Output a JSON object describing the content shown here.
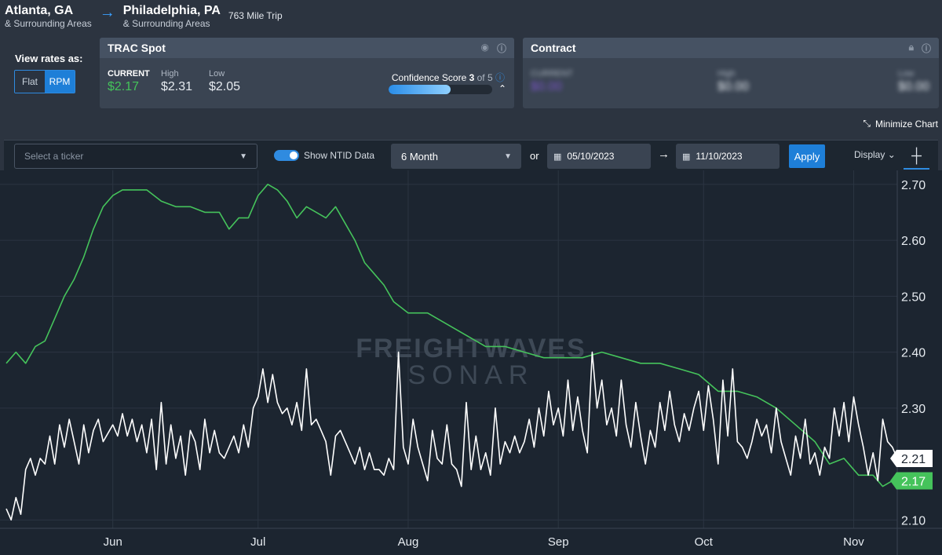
{
  "route": {
    "origin": "Atlanta, GA",
    "origin_sub": "& Surrounding Areas",
    "destination": "Philadelphia, PA",
    "destination_sub": "& Surrounding Areas",
    "trip": "763 Mile Trip"
  },
  "view_rates": {
    "label": "View rates as:",
    "flat": "Flat",
    "rpm": "RPM",
    "selected": "RPM"
  },
  "spot": {
    "title": "TRAC Spot",
    "current_label": "CURRENT",
    "current": "$2.17",
    "high_label": "High",
    "high": "$2.31",
    "low_label": "Low",
    "low": "$2.05",
    "confidence_label": "Confidence Score",
    "confidence_score": "3",
    "confidence_of": "of 5",
    "confidence_fraction": 0.6
  },
  "contract": {
    "title": "Contract",
    "current_label": "CURRENT",
    "current": "$0.00",
    "high_label": "High",
    "high": "$0.00",
    "low_label": "Low",
    "low": "$0.00"
  },
  "minimize_label": "Minimize Chart",
  "toolbar": {
    "ticker_placeholder": "Select a ticker",
    "show_ntid_label": "Show NTID Data",
    "period": "6 Month",
    "or_label": "or",
    "start_date": "05/10/2023",
    "end_date": "11/10/2023",
    "apply_label": "Apply",
    "display_label": "Display"
  },
  "colors": {
    "green": "#45c35b",
    "white": "#ffffff",
    "accent": "#1e7fd8",
    "background": "#1c2530"
  },
  "chart_data": {
    "type": "line",
    "watermark": [
      "FREIGHTWAVES",
      "SONAR"
    ],
    "x_ticks": [
      "Jun",
      "Jul",
      "Aug",
      "Sep",
      "Oct",
      "Nov"
    ],
    "x_tick_dates": [
      "2023-06-01",
      "2023-07-01",
      "2023-08-01",
      "2023-09-01",
      "2023-10-01",
      "2023-11-01"
    ],
    "x_range": [
      "2023-05-10",
      "2023-11-10"
    ],
    "y_ticks": [
      "2.70",
      "2.60",
      "2.50",
      "2.40",
      "2.30",
      "2.10"
    ],
    "y_tick_values": [
      2.7,
      2.6,
      2.5,
      2.4,
      2.3,
      2.1
    ],
    "ylim": [
      2.085,
      2.725
    ],
    "grid": true,
    "series": [
      {
        "color": "#45c35b",
        "end_label": "2.17",
        "points": [
          [
            "2023-05-10",
            2.38
          ],
          [
            "2023-05-12",
            2.4
          ],
          [
            "2023-05-14",
            2.38
          ],
          [
            "2023-05-16",
            2.41
          ],
          [
            "2023-05-18",
            2.42
          ],
          [
            "2023-05-20",
            2.46
          ],
          [
            "2023-05-22",
            2.5
          ],
          [
            "2023-05-24",
            2.53
          ],
          [
            "2023-05-26",
            2.57
          ],
          [
            "2023-05-28",
            2.62
          ],
          [
            "2023-05-30",
            2.66
          ],
          [
            "2023-06-01",
            2.68
          ],
          [
            "2023-06-03",
            2.69
          ],
          [
            "2023-06-05",
            2.69
          ],
          [
            "2023-06-08",
            2.69
          ],
          [
            "2023-06-11",
            2.67
          ],
          [
            "2023-06-14",
            2.66
          ],
          [
            "2023-06-17",
            2.66
          ],
          [
            "2023-06-20",
            2.65
          ],
          [
            "2023-06-23",
            2.65
          ],
          [
            "2023-06-25",
            2.62
          ],
          [
            "2023-06-27",
            2.64
          ],
          [
            "2023-06-29",
            2.64
          ],
          [
            "2023-07-01",
            2.68
          ],
          [
            "2023-07-03",
            2.7
          ],
          [
            "2023-07-05",
            2.69
          ],
          [
            "2023-07-07",
            2.67
          ],
          [
            "2023-07-09",
            2.64
          ],
          [
            "2023-07-11",
            2.66
          ],
          [
            "2023-07-13",
            2.65
          ],
          [
            "2023-07-15",
            2.64
          ],
          [
            "2023-07-17",
            2.66
          ],
          [
            "2023-07-19",
            2.63
          ],
          [
            "2023-07-21",
            2.6
          ],
          [
            "2023-07-23",
            2.56
          ],
          [
            "2023-07-25",
            2.54
          ],
          [
            "2023-07-27",
            2.52
          ],
          [
            "2023-07-29",
            2.49
          ],
          [
            "2023-08-01",
            2.47
          ],
          [
            "2023-08-05",
            2.47
          ],
          [
            "2023-08-09",
            2.45
          ],
          [
            "2023-08-13",
            2.43
          ],
          [
            "2023-08-17",
            2.41
          ],
          [
            "2023-08-21",
            2.41
          ],
          [
            "2023-08-25",
            2.4
          ],
          [
            "2023-08-29",
            2.39
          ],
          [
            "2023-09-02",
            2.39
          ],
          [
            "2023-09-06",
            2.39
          ],
          [
            "2023-09-10",
            2.4
          ],
          [
            "2023-09-14",
            2.39
          ],
          [
            "2023-09-18",
            2.38
          ],
          [
            "2023-09-22",
            2.38
          ],
          [
            "2023-09-26",
            2.37
          ],
          [
            "2023-09-30",
            2.36
          ],
          [
            "2023-10-04",
            2.33
          ],
          [
            "2023-10-08",
            2.33
          ],
          [
            "2023-10-12",
            2.32
          ],
          [
            "2023-10-16",
            2.3
          ],
          [
            "2023-10-20",
            2.27
          ],
          [
            "2023-10-24",
            2.24
          ],
          [
            "2023-10-27",
            2.2
          ],
          [
            "2023-10-30",
            2.21
          ],
          [
            "2023-11-02",
            2.18
          ],
          [
            "2023-11-05",
            2.18
          ],
          [
            "2023-11-07",
            2.16
          ],
          [
            "2023-11-09",
            2.17
          ]
        ]
      },
      {
        "color": "#ffffff",
        "end_label": "2.21",
        "points": [
          [
            "2023-05-10",
            2.12
          ],
          [
            "2023-05-11",
            2.1
          ],
          [
            "2023-05-12",
            2.14
          ],
          [
            "2023-05-13",
            2.11
          ],
          [
            "2023-05-14",
            2.19
          ],
          [
            "2023-05-15",
            2.21
          ],
          [
            "2023-05-16",
            2.18
          ],
          [
            "2023-05-17",
            2.21
          ],
          [
            "2023-05-18",
            2.2
          ],
          [
            "2023-05-19",
            2.25
          ],
          [
            "2023-05-20",
            2.2
          ],
          [
            "2023-05-21",
            2.27
          ],
          [
            "2023-05-22",
            2.23
          ],
          [
            "2023-05-23",
            2.28
          ],
          [
            "2023-05-24",
            2.24
          ],
          [
            "2023-05-25",
            2.2
          ],
          [
            "2023-05-26",
            2.27
          ],
          [
            "2023-05-27",
            2.22
          ],
          [
            "2023-05-28",
            2.26
          ],
          [
            "2023-05-29",
            2.28
          ],
          [
            "2023-05-30",
            2.24
          ],
          [
            "2023-06-01",
            2.27
          ],
          [
            "2023-06-02",
            2.25
          ],
          [
            "2023-06-03",
            2.29
          ],
          [
            "2023-06-04",
            2.25
          ],
          [
            "2023-06-05",
            2.28
          ],
          [
            "2023-06-06",
            2.24
          ],
          [
            "2023-06-07",
            2.27
          ],
          [
            "2023-06-08",
            2.22
          ],
          [
            "2023-06-09",
            2.28
          ],
          [
            "2023-06-10",
            2.19
          ],
          [
            "2023-06-11",
            2.31
          ],
          [
            "2023-06-12",
            2.2
          ],
          [
            "2023-06-13",
            2.27
          ],
          [
            "2023-06-14",
            2.21
          ],
          [
            "2023-06-15",
            2.25
          ],
          [
            "2023-06-16",
            2.18
          ],
          [
            "2023-06-17",
            2.26
          ],
          [
            "2023-06-18",
            2.24
          ],
          [
            "2023-06-19",
            2.19
          ],
          [
            "2023-06-20",
            2.28
          ],
          [
            "2023-06-21",
            2.22
          ],
          [
            "2023-06-22",
            2.26
          ],
          [
            "2023-06-23",
            2.22
          ],
          [
            "2023-06-24",
            2.21
          ],
          [
            "2023-06-25",
            2.23
          ],
          [
            "2023-06-26",
            2.25
          ],
          [
            "2023-06-27",
            2.22
          ],
          [
            "2023-06-28",
            2.27
          ],
          [
            "2023-06-29",
            2.23
          ],
          [
            "2023-06-30",
            2.3
          ],
          [
            "2023-07-01",
            2.32
          ],
          [
            "2023-07-02",
            2.37
          ],
          [
            "2023-07-03",
            2.31
          ],
          [
            "2023-07-04",
            2.36
          ],
          [
            "2023-07-05",
            2.31
          ],
          [
            "2023-07-06",
            2.29
          ],
          [
            "2023-07-07",
            2.3
          ],
          [
            "2023-07-08",
            2.27
          ],
          [
            "2023-07-09",
            2.31
          ],
          [
            "2023-07-10",
            2.26
          ],
          [
            "2023-07-11",
            2.37
          ],
          [
            "2023-07-12",
            2.27
          ],
          [
            "2023-07-13",
            2.28
          ],
          [
            "2023-07-14",
            2.26
          ],
          [
            "2023-07-15",
            2.24
          ],
          [
            "2023-07-16",
            2.18
          ],
          [
            "2023-07-17",
            2.25
          ],
          [
            "2023-07-18",
            2.26
          ],
          [
            "2023-07-19",
            2.24
          ],
          [
            "2023-07-20",
            2.22
          ],
          [
            "2023-07-21",
            2.2
          ],
          [
            "2023-07-22",
            2.23
          ],
          [
            "2023-07-23",
            2.19
          ],
          [
            "2023-07-24",
            2.22
          ],
          [
            "2023-07-25",
            2.19
          ],
          [
            "2023-07-26",
            2.19
          ],
          [
            "2023-07-27",
            2.18
          ],
          [
            "2023-07-28",
            2.21
          ],
          [
            "2023-07-29",
            2.19
          ],
          [
            "2023-07-30",
            2.4
          ],
          [
            "2023-07-31",
            2.23
          ],
          [
            "2023-08-01",
            2.2
          ],
          [
            "2023-08-02",
            2.28
          ],
          [
            "2023-08-03",
            2.23
          ],
          [
            "2023-08-04",
            2.2
          ],
          [
            "2023-08-05",
            2.17
          ],
          [
            "2023-08-06",
            2.26
          ],
          [
            "2023-08-07",
            2.21
          ],
          [
            "2023-08-08",
            2.2
          ],
          [
            "2023-08-09",
            2.27
          ],
          [
            "2023-08-10",
            2.2
          ],
          [
            "2023-08-11",
            2.19
          ],
          [
            "2023-08-12",
            2.16
          ],
          [
            "2023-08-13",
            2.31
          ],
          [
            "2023-08-14",
            2.19
          ],
          [
            "2023-08-15",
            2.25
          ],
          [
            "2023-08-16",
            2.19
          ],
          [
            "2023-08-17",
            2.22
          ],
          [
            "2023-08-18",
            2.18
          ],
          [
            "2023-08-19",
            2.3
          ],
          [
            "2023-08-20",
            2.2
          ],
          [
            "2023-08-21",
            2.24
          ],
          [
            "2023-08-22",
            2.22
          ],
          [
            "2023-08-23",
            2.25
          ],
          [
            "2023-08-24",
            2.22
          ],
          [
            "2023-08-25",
            2.24
          ],
          [
            "2023-08-26",
            2.28
          ],
          [
            "2023-08-27",
            2.23
          ],
          [
            "2023-08-28",
            2.3
          ],
          [
            "2023-08-29",
            2.25
          ],
          [
            "2023-08-30",
            2.33
          ],
          [
            "2023-08-31",
            2.27
          ],
          [
            "2023-09-01",
            2.3
          ],
          [
            "2023-09-02",
            2.25
          ],
          [
            "2023-09-03",
            2.35
          ],
          [
            "2023-09-04",
            2.26
          ],
          [
            "2023-09-05",
            2.32
          ],
          [
            "2023-09-06",
            2.26
          ],
          [
            "2023-09-07",
            2.22
          ],
          [
            "2023-09-08",
            2.4
          ],
          [
            "2023-09-09",
            2.3
          ],
          [
            "2023-09-10",
            2.35
          ],
          [
            "2023-09-11",
            2.27
          ],
          [
            "2023-09-12",
            2.3
          ],
          [
            "2023-09-13",
            2.25
          ],
          [
            "2023-09-14",
            2.35
          ],
          [
            "2023-09-15",
            2.27
          ],
          [
            "2023-09-16",
            2.23
          ],
          [
            "2023-09-17",
            2.31
          ],
          [
            "2023-09-18",
            2.25
          ],
          [
            "2023-09-19",
            2.2
          ],
          [
            "2023-09-20",
            2.26
          ],
          [
            "2023-09-21",
            2.23
          ],
          [
            "2023-09-22",
            2.31
          ],
          [
            "2023-09-23",
            2.26
          ],
          [
            "2023-09-24",
            2.33
          ],
          [
            "2023-09-25",
            2.27
          ],
          [
            "2023-09-26",
            2.24
          ],
          [
            "2023-09-27",
            2.29
          ],
          [
            "2023-09-28",
            2.26
          ],
          [
            "2023-09-29",
            2.3
          ],
          [
            "2023-09-30",
            2.33
          ],
          [
            "2023-10-01",
            2.26
          ],
          [
            "2023-10-02",
            2.34
          ],
          [
            "2023-10-03",
            2.28
          ],
          [
            "2023-10-04",
            2.2
          ],
          [
            "2023-10-05",
            2.35
          ],
          [
            "2023-10-06",
            2.25
          ],
          [
            "2023-10-07",
            2.37
          ],
          [
            "2023-10-08",
            2.24
          ],
          [
            "2023-10-09",
            2.23
          ],
          [
            "2023-10-10",
            2.21
          ],
          [
            "2023-10-11",
            2.24
          ],
          [
            "2023-10-12",
            2.28
          ],
          [
            "2023-10-13",
            2.25
          ],
          [
            "2023-10-14",
            2.27
          ],
          [
            "2023-10-15",
            2.22
          ],
          [
            "2023-10-16",
            2.3
          ],
          [
            "2023-10-17",
            2.24
          ],
          [
            "2023-10-18",
            2.21
          ],
          [
            "2023-10-19",
            2.18
          ],
          [
            "2023-10-20",
            2.25
          ],
          [
            "2023-10-21",
            2.21
          ],
          [
            "2023-10-22",
            2.28
          ],
          [
            "2023-10-23",
            2.2
          ],
          [
            "2023-10-24",
            2.22
          ],
          [
            "2023-10-25",
            2.18
          ],
          [
            "2023-10-26",
            2.23
          ],
          [
            "2023-10-27",
            2.21
          ],
          [
            "2023-10-28",
            2.3
          ],
          [
            "2023-10-29",
            2.25
          ],
          [
            "2023-10-30",
            2.31
          ],
          [
            "2023-10-31",
            2.24
          ],
          [
            "2023-11-01",
            2.32
          ],
          [
            "2023-11-02",
            2.27
          ],
          [
            "2023-11-03",
            2.23
          ],
          [
            "2023-11-04",
            2.18
          ],
          [
            "2023-11-05",
            2.22
          ],
          [
            "2023-11-06",
            2.17
          ],
          [
            "2023-11-07",
            2.28
          ],
          [
            "2023-11-08",
            2.24
          ],
          [
            "2023-11-09",
            2.23
          ],
          [
            "2023-11-10",
            2.21
          ]
        ]
      }
    ]
  }
}
